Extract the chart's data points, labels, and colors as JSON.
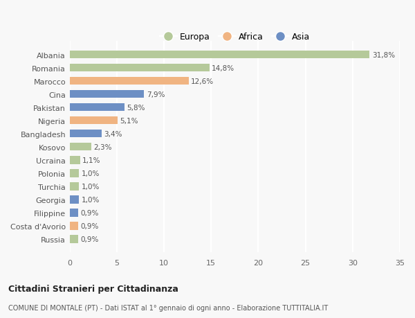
{
  "categories": [
    "Albania",
    "Romania",
    "Marocco",
    "Cina",
    "Pakistan",
    "Nigeria",
    "Bangladesh",
    "Kosovo",
    "Ucraina",
    "Polonia",
    "Turchia",
    "Georgia",
    "Filippine",
    "Costa d'Avorio",
    "Russia"
  ],
  "values": [
    31.8,
    14.8,
    12.6,
    7.9,
    5.8,
    5.1,
    3.4,
    2.3,
    1.1,
    1.0,
    1.0,
    1.0,
    0.9,
    0.9,
    0.9
  ],
  "labels": [
    "31,8%",
    "14,8%",
    "12,6%",
    "7,9%",
    "5,8%",
    "5,1%",
    "3,4%",
    "2,3%",
    "1,1%",
    "1,0%",
    "1,0%",
    "1,0%",
    "0,9%",
    "0,9%",
    "0,9%"
  ],
  "colors": [
    "#b5c99a",
    "#b5c99a",
    "#f0b482",
    "#6d8fc4",
    "#6d8fc4",
    "#f0b482",
    "#6d8fc4",
    "#b5c99a",
    "#b5c99a",
    "#b5c99a",
    "#b5c99a",
    "#6d8fc4",
    "#6d8fc4",
    "#f0b482",
    "#b5c99a"
  ],
  "legend_labels": [
    "Europa",
    "Africa",
    "Asia"
  ],
  "legend_colors": [
    "#b5c99a",
    "#f0b482",
    "#6d8fc4"
  ],
  "xlim": [
    0,
    35
  ],
  "xticks": [
    0,
    5,
    10,
    15,
    20,
    25,
    30,
    35
  ],
  "title1": "Cittadini Stranieri per Cittadinanza",
  "title2": "COMUNE DI MONTALE (PT) - Dati ISTAT al 1° gennaio di ogni anno - Elaborazione TUTTITALIA.IT",
  "background_color": "#f8f8f8",
  "grid_color": "#ffffff",
  "bar_height": 0.6
}
